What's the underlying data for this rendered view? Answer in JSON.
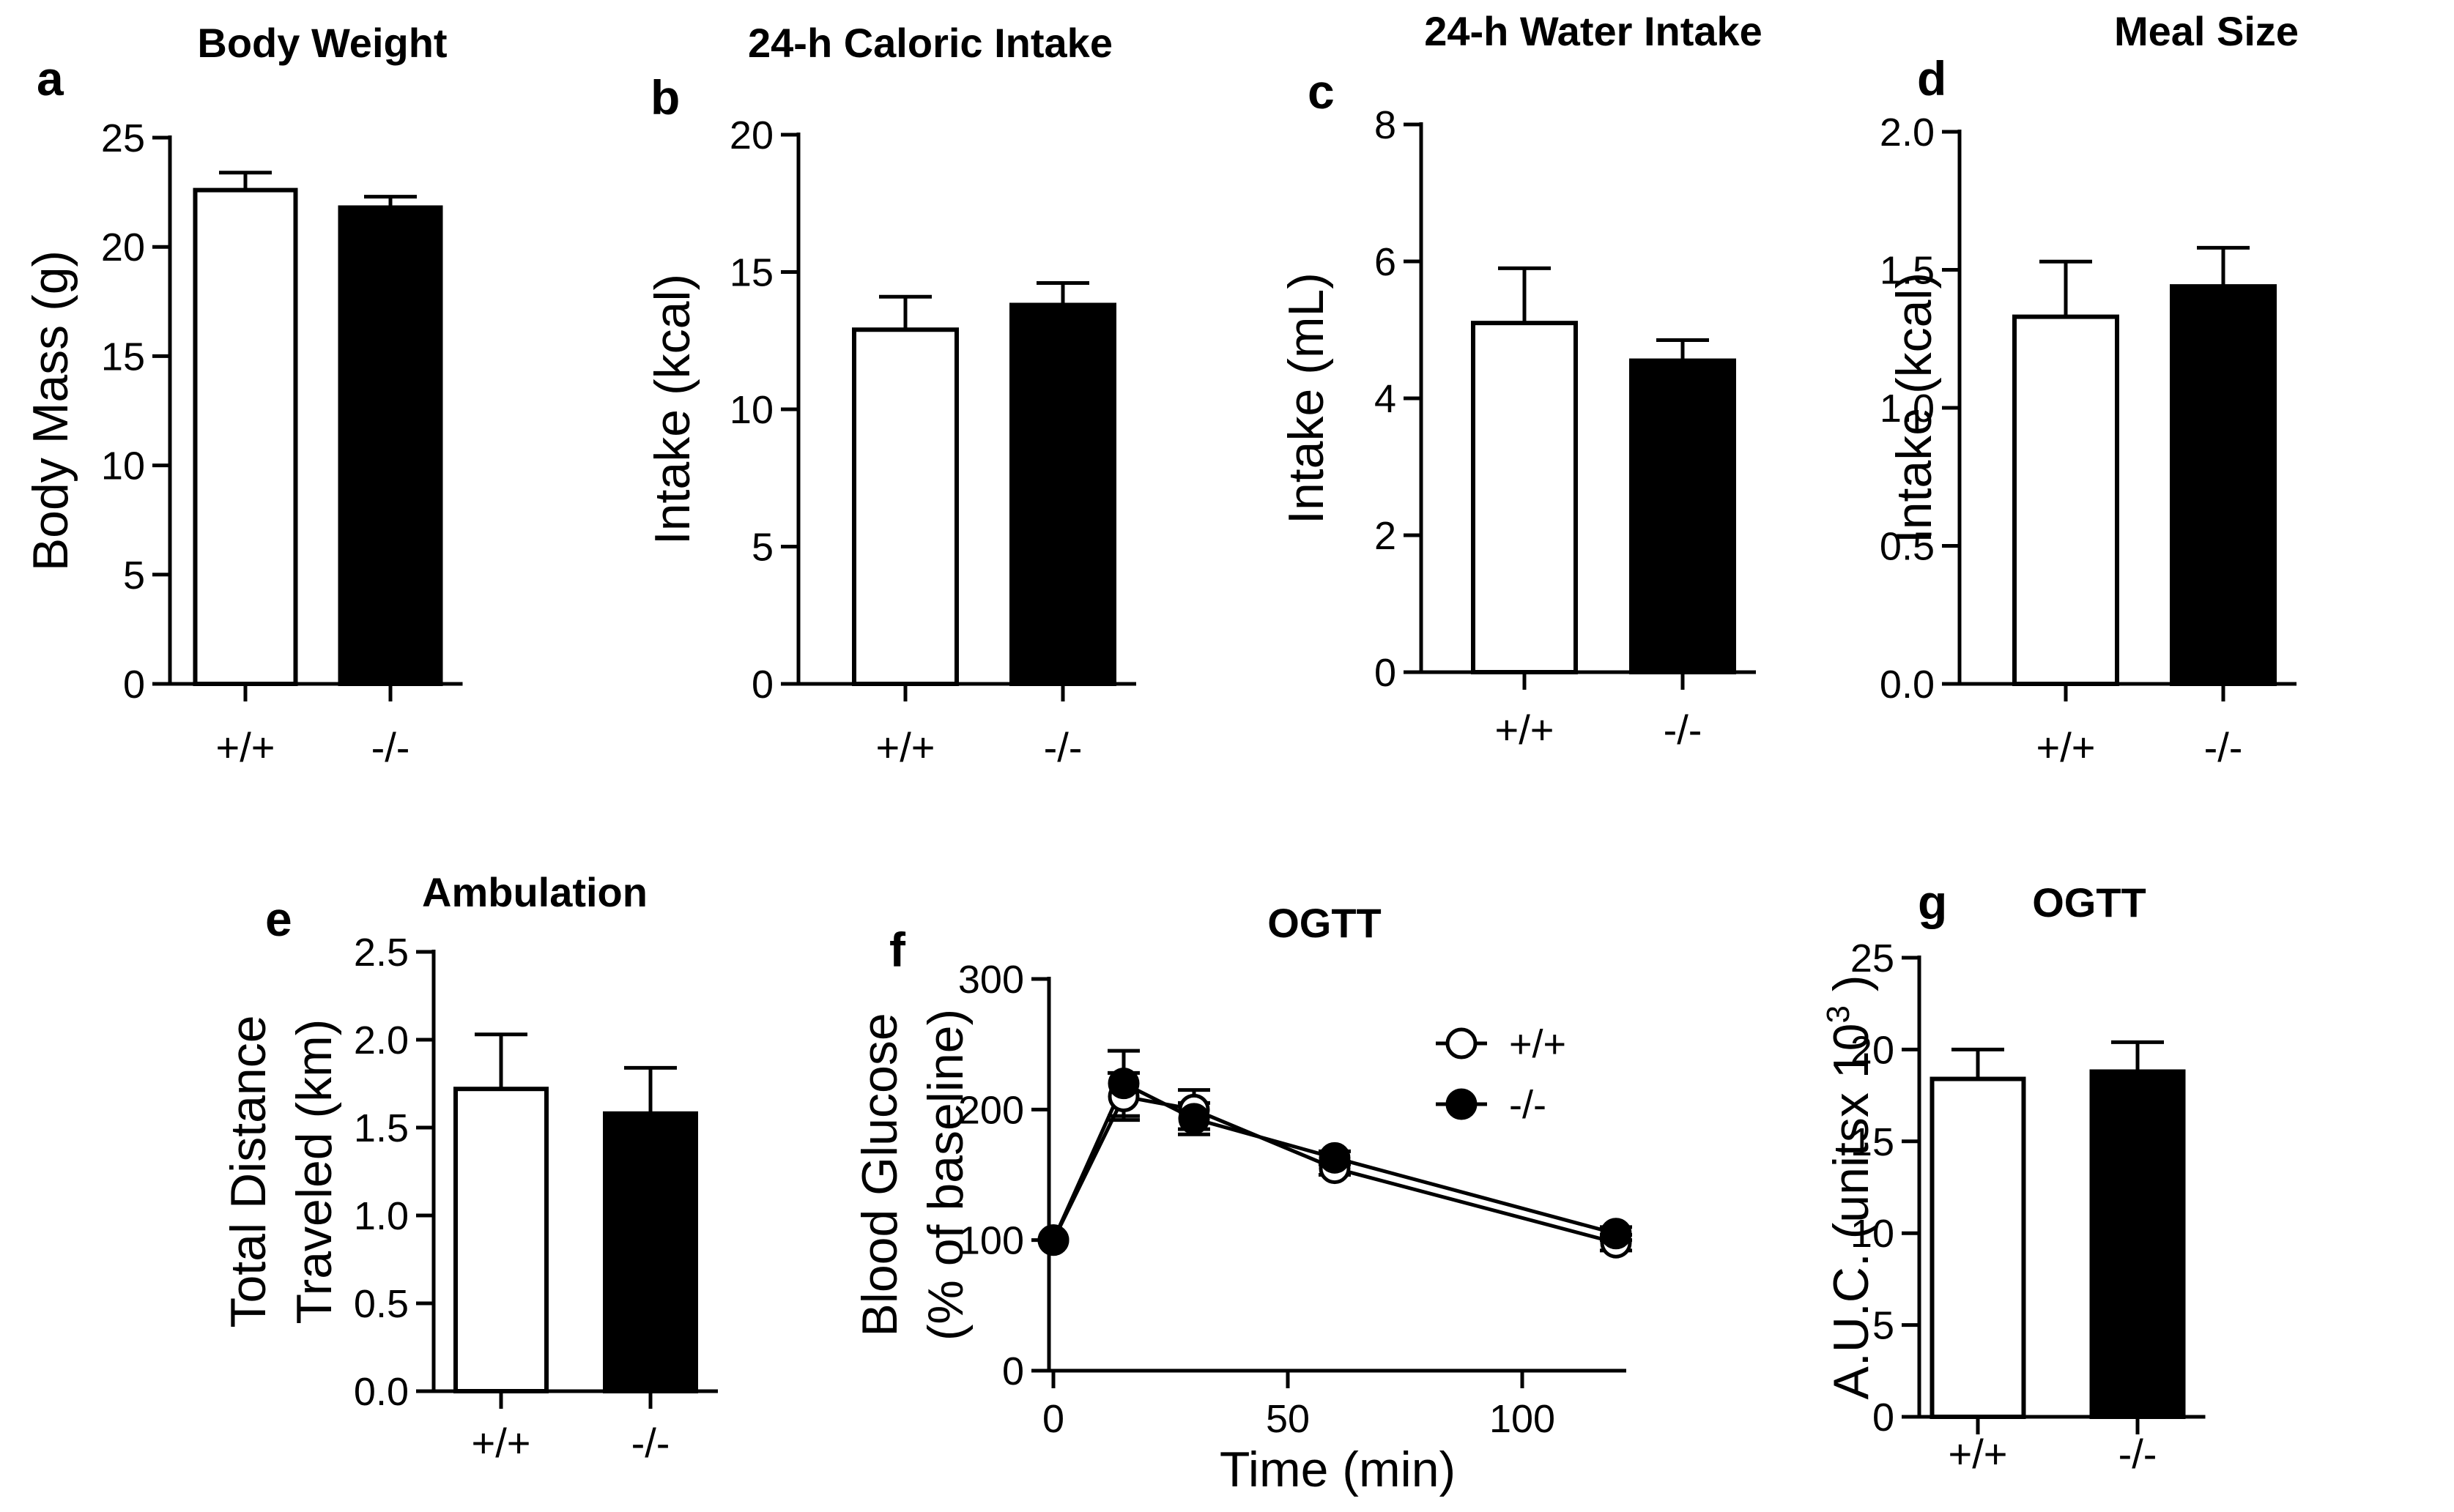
{
  "colors": {
    "axis": "#000000",
    "control_fill": "#ffffff",
    "knockout_fill": "#000000"
  },
  "chart_data": [
    {
      "id": "a",
      "type": "bar",
      "letter": "a",
      "title": "Body Weight",
      "xlabel": "",
      "ylabel": "Body Mass (g)",
      "categories": [
        "+/+",
        "-/-"
      ],
      "values": [
        22.6,
        21.8
      ],
      "errors": [
        0.8,
        0.5
      ],
      "ylim": [
        0,
        25
      ],
      "yticks": [
        0,
        5,
        10,
        15,
        20,
        25
      ],
      "ytick_labels": [
        "0",
        "5",
        "10",
        "15",
        "20",
        "25"
      ]
    },
    {
      "id": "b",
      "type": "bar",
      "letter": "b",
      "title": "24-h Caloric Intake",
      "xlabel": "",
      "ylabel": "Intake (kcal)",
      "categories": [
        "+/+",
        "-/-"
      ],
      "values": [
        12.9,
        13.8
      ],
      "errors": [
        1.2,
        0.8
      ],
      "ylim": [
        0,
        20
      ],
      "yticks": [
        0,
        5,
        10,
        15,
        20
      ],
      "ytick_labels": [
        "0",
        "5",
        "10",
        "15",
        "20"
      ]
    },
    {
      "id": "c",
      "type": "bar",
      "letter": "c",
      "title": "24-h Water Intake",
      "xlabel": "",
      "ylabel": "Intake (mL)",
      "categories": [
        "+/+",
        "-/-"
      ],
      "values": [
        5.1,
        4.55
      ],
      "errors": [
        0.8,
        0.3
      ],
      "ylim": [
        0,
        8
      ],
      "yticks": [
        0,
        2,
        4,
        6,
        8
      ],
      "ytick_labels": [
        "0",
        "2",
        "4",
        "6",
        "8"
      ]
    },
    {
      "id": "d",
      "type": "bar",
      "letter": "d",
      "title": "Meal Size",
      "xlabel": "",
      "ylabel": "Intake (kcal)",
      "categories": [
        "+/+",
        "-/-"
      ],
      "values": [
        1.33,
        1.44
      ],
      "errors": [
        0.2,
        0.14
      ],
      "ylim": [
        0,
        2
      ],
      "yticks": [
        0,
        0.5,
        1,
        1.5,
        2
      ],
      "ytick_labels": [
        "0.0",
        "0.5",
        "1.0",
        "1.5",
        "2.0"
      ]
    },
    {
      "id": "e",
      "type": "bar",
      "letter": "e",
      "title": "Ambulation",
      "xlabel": "",
      "ylabel": "Total Distance",
      "ylabel2": "Traveled (km)",
      "categories": [
        "+/+",
        "-/-"
      ],
      "values": [
        1.72,
        1.58
      ],
      "errors": [
        0.31,
        0.26
      ],
      "ylim": [
        0,
        2.5
      ],
      "yticks": [
        0,
        0.5,
        1,
        1.5,
        2,
        2.5
      ],
      "ytick_labels": [
        "0.0",
        "0.5",
        "1.0",
        "1.5",
        "2.0",
        "2.5"
      ]
    },
    {
      "id": "f",
      "type": "line",
      "letter": "f",
      "title": "OGTT",
      "xlabel": "Time (min)",
      "ylabel": "Blood Glucose",
      "ylabel2": "(% of baseline)",
      "xlim": [
        0,
        120
      ],
      "xticks": [
        0,
        50,
        100
      ],
      "xtick_labels": [
        "0",
        "50",
        "100"
      ],
      "ylim": [
        0,
        300
      ],
      "yticks": [
        0,
        100,
        200,
        300
      ],
      "ytick_labels": [
        "0",
        "100",
        "200",
        "300"
      ],
      "legend": "top-right",
      "series": [
        {
          "name": "+/+",
          "marker": "open-circle",
          "x": [
            0,
            15,
            30,
            60,
            120
          ],
          "y": [
            100,
            210,
            200,
            155,
            98
          ],
          "errors": [
            0,
            18,
            15,
            5,
            6
          ]
        },
        {
          "name": "-/-",
          "marker": "filled-circle",
          "x": [
            0,
            15,
            30,
            60,
            120
          ],
          "y": [
            100,
            220,
            193,
            163,
            105
          ],
          "errors": [
            0,
            25,
            12,
            5,
            5
          ]
        }
      ]
    },
    {
      "id": "g",
      "type": "bar",
      "letter": "g",
      "title": "OGTT",
      "xlabel": "",
      "ylabel": "A.U.C. (unitsx 10",
      "ylabel_superscript": "3",
      "ylabel_suffix": " )",
      "categories": [
        "+/+",
        "-/-"
      ],
      "values": [
        18.4,
        18.8
      ],
      "errors": [
        1.6,
        1.6
      ],
      "ylim": [
        0,
        25
      ],
      "yticks": [
        0,
        5,
        10,
        15,
        20,
        25
      ],
      "ytick_labels": [
        "0",
        "5",
        "10",
        "15",
        "20",
        "25"
      ]
    }
  ]
}
